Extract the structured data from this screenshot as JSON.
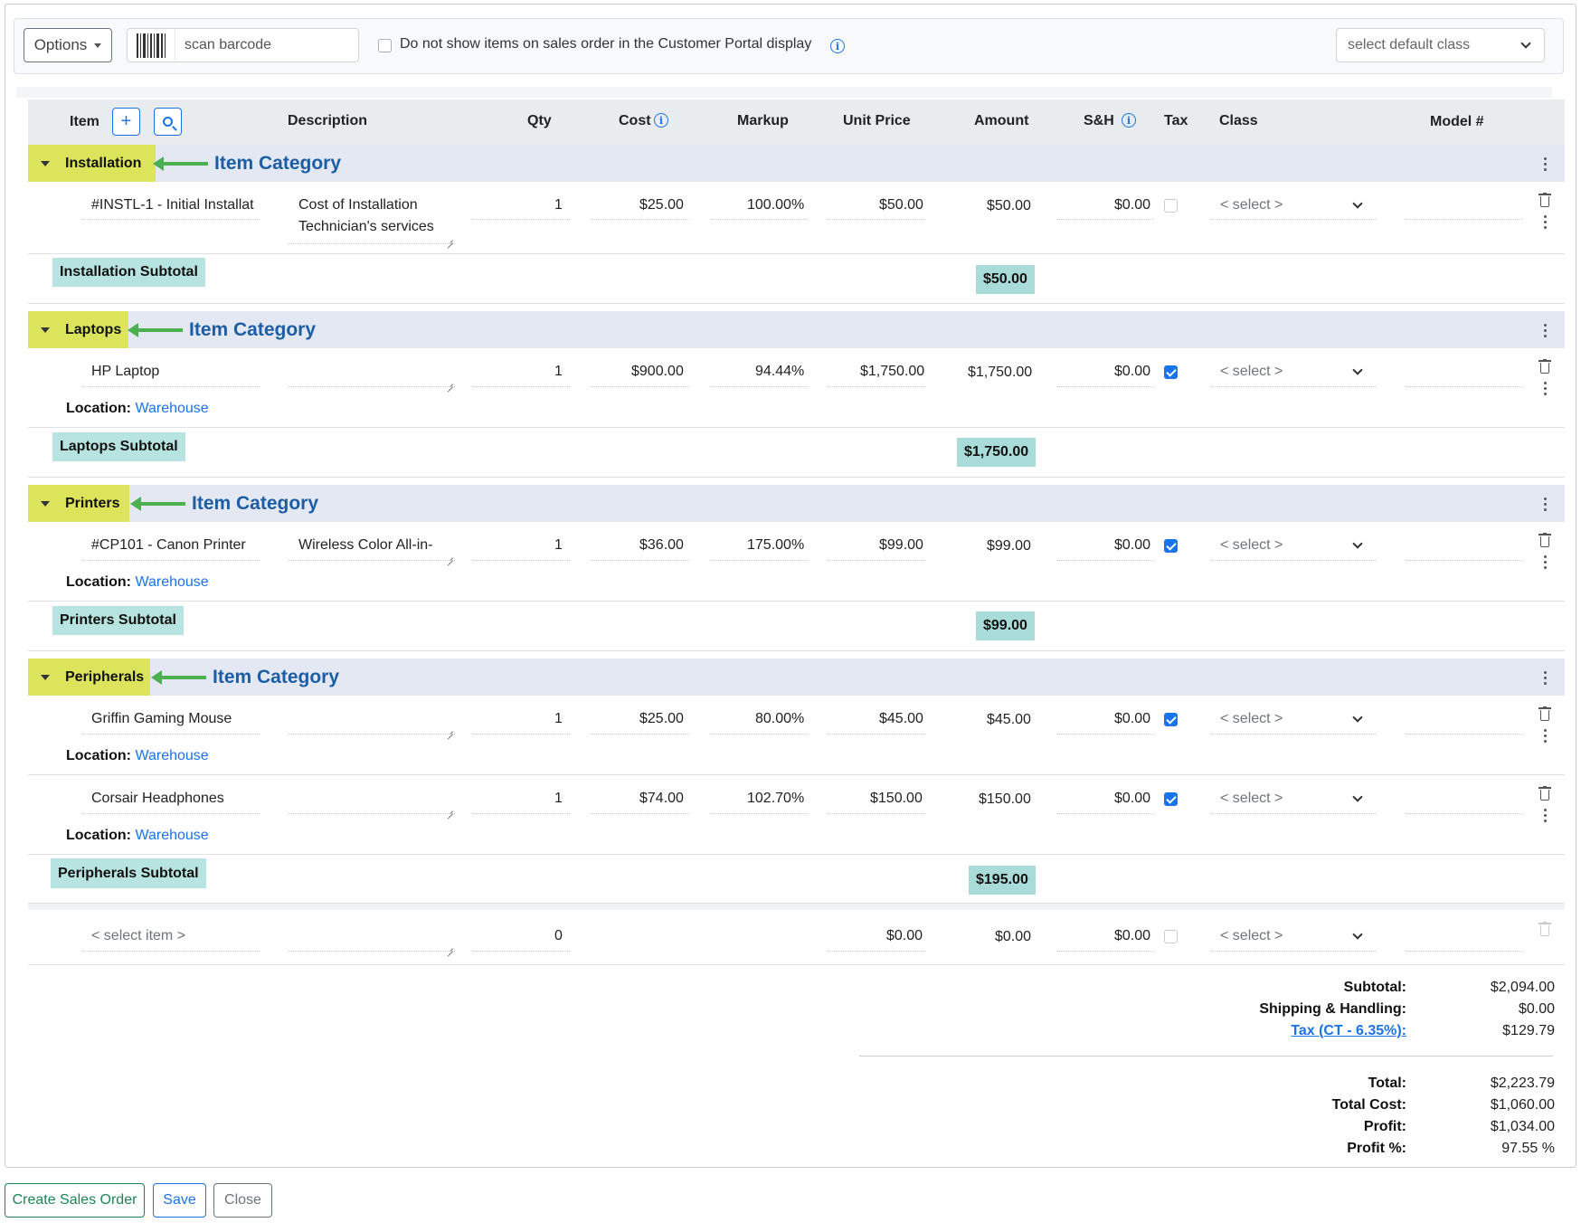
{
  "toolbar": {
    "options_label": "Options",
    "barcode_placeholder": "scan barcode",
    "portal_checkbox_label": "Do not show items on sales order in the Customer Portal display",
    "default_class_placeholder": "select default class"
  },
  "columns": {
    "item": "Item",
    "description": "Description",
    "qty": "Qty",
    "cost": "Cost",
    "markup": "Markup",
    "unit_price": "Unit Price",
    "amount": "Amount",
    "sh": "S&H",
    "tax": "Tax",
    "class": "Class",
    "model": "Model #"
  },
  "annotation_label": "Item Category",
  "location_label": "Location:",
  "categories": [
    {
      "name": "Installation",
      "subtotal_label": "Installation Subtotal",
      "subtotal": "$50.00",
      "items": [
        {
          "item": "#INSTL-1 - Initial Installat",
          "description_line1": "Cost of Installation",
          "description_line2": "Technician's services",
          "qty": "1",
          "cost": "$25.00",
          "markup": "100.00%",
          "unit_price": "$50.00",
          "amount": "$50.00",
          "sh": "$0.00",
          "tax": false,
          "class": "< select >",
          "location": ""
        }
      ]
    },
    {
      "name": "Laptops",
      "subtotal_label": "Laptops Subtotal",
      "subtotal": "$1,750.00",
      "items": [
        {
          "item": "HP Laptop",
          "description_line1": "",
          "qty": "1",
          "cost": "$900.00",
          "markup": "94.44%",
          "unit_price": "$1,750.00",
          "amount": "$1,750.00",
          "sh": "$0.00",
          "tax": true,
          "class": "< select >",
          "location": "Warehouse"
        }
      ]
    },
    {
      "name": "Printers",
      "subtotal_label": "Printers Subtotal",
      "subtotal": "$99.00",
      "items": [
        {
          "item": "#CP101 - Canon Printer",
          "description_line1": "Wireless Color All-in-",
          "qty": "1",
          "cost": "$36.00",
          "markup": "175.00%",
          "unit_price": "$99.00",
          "amount": "$99.00",
          "sh": "$0.00",
          "tax": true,
          "class": "< select >",
          "location": "Warehouse"
        }
      ]
    },
    {
      "name": "Peripherals",
      "subtotal_label": "Peripherals Subtotal",
      "subtotal": "$195.00",
      "items": [
        {
          "item": "Griffin Gaming Mouse",
          "description_line1": "",
          "qty": "1",
          "cost": "$25.00",
          "markup": "80.00%",
          "unit_price": "$45.00",
          "amount": "$45.00",
          "sh": "$0.00",
          "tax": true,
          "class": "< select >",
          "location": "Warehouse"
        },
        {
          "item": "Corsair Headphones",
          "description_line1": "",
          "qty": "1",
          "cost": "$74.00",
          "markup": "102.70%",
          "unit_price": "$150.00",
          "amount": "$150.00",
          "sh": "$0.00",
          "tax": true,
          "class": "< select >",
          "location": "Warehouse"
        }
      ]
    }
  ],
  "new_row": {
    "item_placeholder": "< select item >",
    "qty": "0",
    "unit_price": "$0.00",
    "amount": "$0.00",
    "sh": "$0.00",
    "class": "< select >"
  },
  "totals": {
    "subtotal_label": "Subtotal:",
    "subtotal": "$2,094.00",
    "sh_label": "Shipping & Handling:",
    "sh": "$0.00",
    "tax_label": "Tax (CT - 6.35%):",
    "tax": "$129.79",
    "total_label": "Total:",
    "total": "$2,223.79",
    "total_cost_label": "Total Cost:",
    "total_cost": "$1,060.00",
    "profit_label": "Profit:",
    "profit": "$1,034.00",
    "profit_pct_label": "Profit %:",
    "profit_pct": "97.55 %"
  },
  "footer": {
    "create_label": "Create Sales Order",
    "save_label": "Save",
    "close_label": "Close"
  },
  "colors": {
    "accent": "#1a73e8",
    "category_highlight": "#dbe45a",
    "subtotal_highlight": "#b7e4e0",
    "annotation_arrow": "#4caf50",
    "annotation_text": "#1c5ea5"
  }
}
